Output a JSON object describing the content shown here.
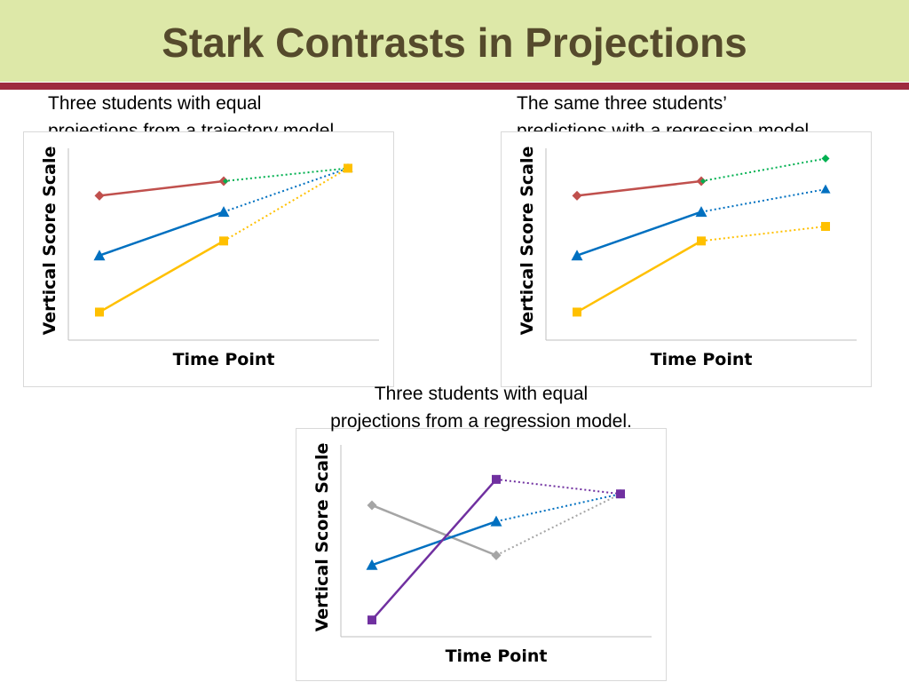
{
  "slide": {
    "title": "Stark Contrasts in Projections"
  },
  "captions": [
    {
      "lines": [
        "Three students with equal",
        "projections from a trajectory model"
      ]
    },
    {
      "lines": [
        "The same three students’",
        "predictions with a regression model."
      ]
    },
    {
      "lines": [
        "Three students with equal",
        "projections from a regression model."
      ]
    }
  ],
  "chart_data": [
    {
      "type": "line",
      "xlabel": "Time Point",
      "ylabel": "Vertical Score Scale",
      "x": [
        1,
        2,
        3
      ],
      "ylim": [
        0,
        10
      ],
      "grid": false,
      "legend": "none",
      "solid_through_index": 1,
      "series": [
        {
          "color": "#c0504d",
          "marker": "diamond",
          "values": [
            8.0,
            8.9,
            9.7
          ]
        },
        {
          "color": "#0070c0",
          "marker": "triangle",
          "values": [
            4.3,
            7.0,
            9.7
          ]
        },
        {
          "color": "#ffc000",
          "marker": "square",
          "values": [
            0.8,
            5.2,
            9.7
          ]
        }
      ],
      "projection_colors": [
        "#00b050",
        "#0070c0",
        "#ffc000"
      ]
    },
    {
      "type": "line",
      "xlabel": "Time Point",
      "ylabel": "Vertical Score Scale",
      "x": [
        1,
        2,
        3
      ],
      "ylim": [
        0,
        10
      ],
      "grid": false,
      "legend": "none",
      "solid_through_index": 1,
      "series": [
        {
          "color": "#c0504d",
          "marker": "diamond",
          "values": [
            8.0,
            8.9,
            10.3
          ]
        },
        {
          "color": "#0070c0",
          "marker": "triangle",
          "values": [
            4.3,
            7.0,
            8.4
          ]
        },
        {
          "color": "#ffc000",
          "marker": "square",
          "values": [
            0.8,
            5.2,
            6.1
          ]
        }
      ],
      "projection_colors": [
        "#00b050",
        "#0070c0",
        "#ffc000"
      ]
    },
    {
      "type": "line",
      "xlabel": "Time Point",
      "ylabel": "Vertical Score Scale",
      "x": [
        1,
        2,
        3
      ],
      "ylim": [
        0,
        10
      ],
      "grid": false,
      "legend": "none",
      "solid_through_index": 1,
      "series": [
        {
          "color": "#a5a5a5",
          "marker": "diamond",
          "values": [
            7.2,
            4.1,
            7.9
          ]
        },
        {
          "color": "#0070c0",
          "marker": "triangle",
          "values": [
            3.5,
            6.2,
            7.9
          ]
        },
        {
          "color": "#7030a0",
          "marker": "square",
          "values": [
            0.1,
            8.8,
            7.9
          ]
        }
      ],
      "projection_colors": [
        "#a5a5a5",
        "#0070c0",
        "#7030a0"
      ]
    }
  ]
}
